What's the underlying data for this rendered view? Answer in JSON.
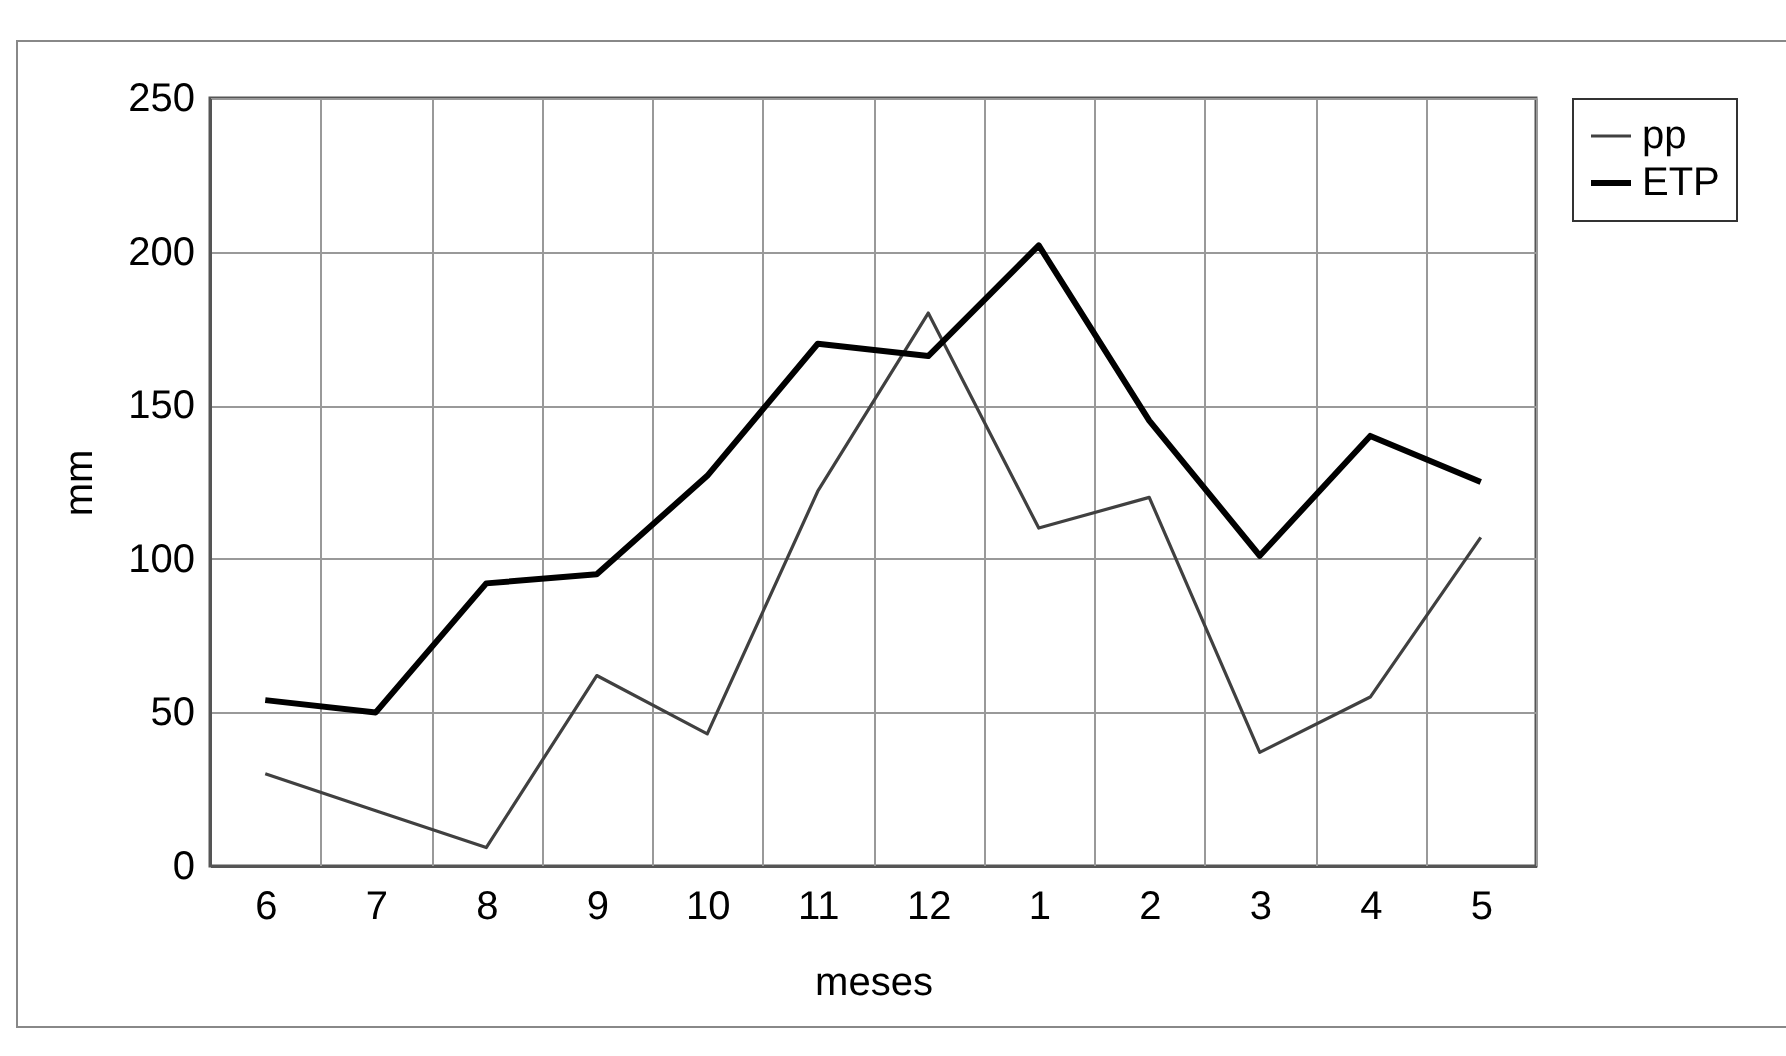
{
  "chart_data": {
    "type": "line",
    "xlabel": "meses",
    "ylabel": "mm",
    "categories": [
      "6",
      "7",
      "8",
      "9",
      "10",
      "11",
      "12",
      "1",
      "2",
      "3",
      "4",
      "5"
    ],
    "series": [
      {
        "name": "pp",
        "color": "#404040",
        "values": [
          30,
          18,
          6,
          62,
          43,
          122,
          180,
          110,
          120,
          37,
          55,
          107
        ]
      },
      {
        "name": "ETP",
        "color": "#000000",
        "values": [
          54,
          50,
          92,
          95,
          127,
          170,
          166,
          202,
          145,
          101,
          140,
          125
        ]
      }
    ],
    "ylim": [
      0,
      250
    ],
    "yticks": [
      0,
      50,
      100,
      150,
      200,
      250
    ],
    "grid": true,
    "legend": "right",
    "marker": "none",
    "line_style": "solid"
  }
}
